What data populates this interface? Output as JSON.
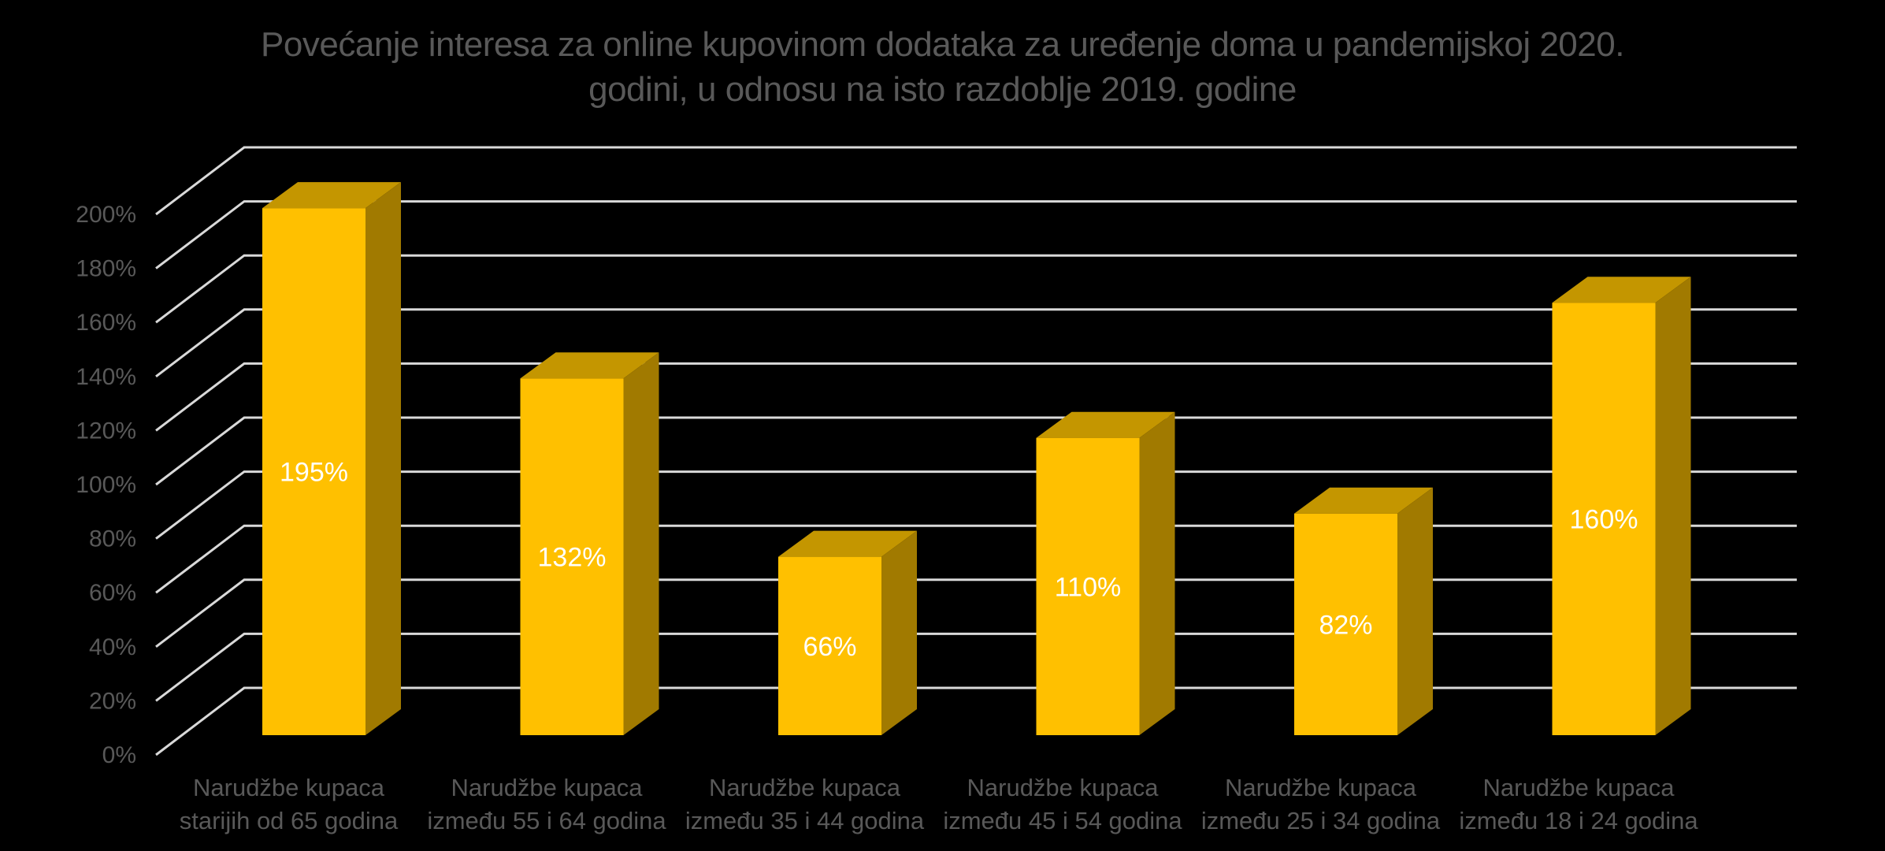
{
  "chart_data": {
    "type": "bar",
    "style_3d": true,
    "title": "Povećanje interesa za online kupovinom dodataka za uređenje doma u pandemijskoj 2020. godini, u odnosu na isto razdoblje 2019. godine",
    "title_lines": [
      "Povećanje interesa za online kupovinom dodataka za uređenje doma u pandemijskoj 2020.",
      "godini, u odnosu na isto razdoblje 2019. godine"
    ],
    "categories": [
      "Narudžbe kupaca starijih od 65 godina",
      "Narudžbe kupaca između 55 i 64 godina",
      "Narudžbe kupaca između 35 i 44 godina",
      "Narudžbe kupaca između 45 i 54 godina",
      "Narudžbe kupaca između 25 i 34 godina",
      "Narudžbe kupaca između 18 i 24 godina"
    ],
    "categories_lines": [
      [
        "Narudžbe kupaca",
        "starijih od 65 godina"
      ],
      [
        "Narudžbe kupaca",
        "između 55 i 64 godina"
      ],
      [
        "Narudžbe kupaca",
        "između 35 i 44 godina"
      ],
      [
        "Narudžbe kupaca",
        "između 45 i 54 godina"
      ],
      [
        "Narudžbe kupaca",
        "između 25 i 34 godina"
      ],
      [
        "Narudžbe kupaca",
        "između 18 i 24 godina"
      ]
    ],
    "values": [
      195,
      132,
      66,
      110,
      82,
      160
    ],
    "value_labels": [
      "195%",
      "132%",
      "66%",
      "110%",
      "82%",
      "160%"
    ],
    "yticks": [
      0,
      20,
      40,
      60,
      80,
      100,
      120,
      140,
      160,
      180,
      200
    ],
    "ytick_labels": [
      "0%",
      "20%",
      "40%",
      "60%",
      "80%",
      "100%",
      "120%",
      "140%",
      "160%",
      "180%",
      "200%"
    ],
    "ylim": [
      0,
      200
    ],
    "grid": true,
    "legend": false,
    "xlabel": "",
    "ylabel": "",
    "colors": {
      "background": "#000000",
      "bar_front": "#FFC000",
      "bar_top": "#C49600",
      "bar_side": "#A17A00",
      "grid_color": "#D9D9D9",
      "axis_label_color": "#595959",
      "title_color": "#595959",
      "value_label_color": "#FFFFFF"
    }
  }
}
